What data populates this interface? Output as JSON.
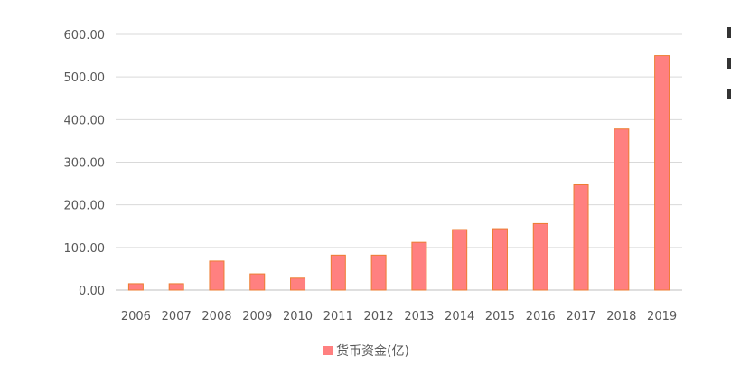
{
  "chart_data": {
    "type": "bar",
    "categories": [
      "2006",
      "2007",
      "2008",
      "2009",
      "2010",
      "2011",
      "2012",
      "2013",
      "2014",
      "2015",
      "2016",
      "2017",
      "2018",
      "2019"
    ],
    "series": [
      {
        "name": "货币资金(亿)",
        "values": [
          15,
          15,
          68,
          38,
          28,
          82,
          82,
          112,
          142,
          144,
          156,
          247,
          378,
          550
        ]
      }
    ],
    "title": "",
    "xlabel": "",
    "ylabel": "",
    "ylim": [
      0,
      600
    ],
    "yticks": [
      "0.00",
      "100.00",
      "200.00",
      "300.00",
      "400.00",
      "500.00",
      "600.00"
    ],
    "grid": true,
    "legend": "bottom",
    "colors": {
      "bar_fill": "#ff8080",
      "bar_edge": "#ed7d31"
    }
  }
}
